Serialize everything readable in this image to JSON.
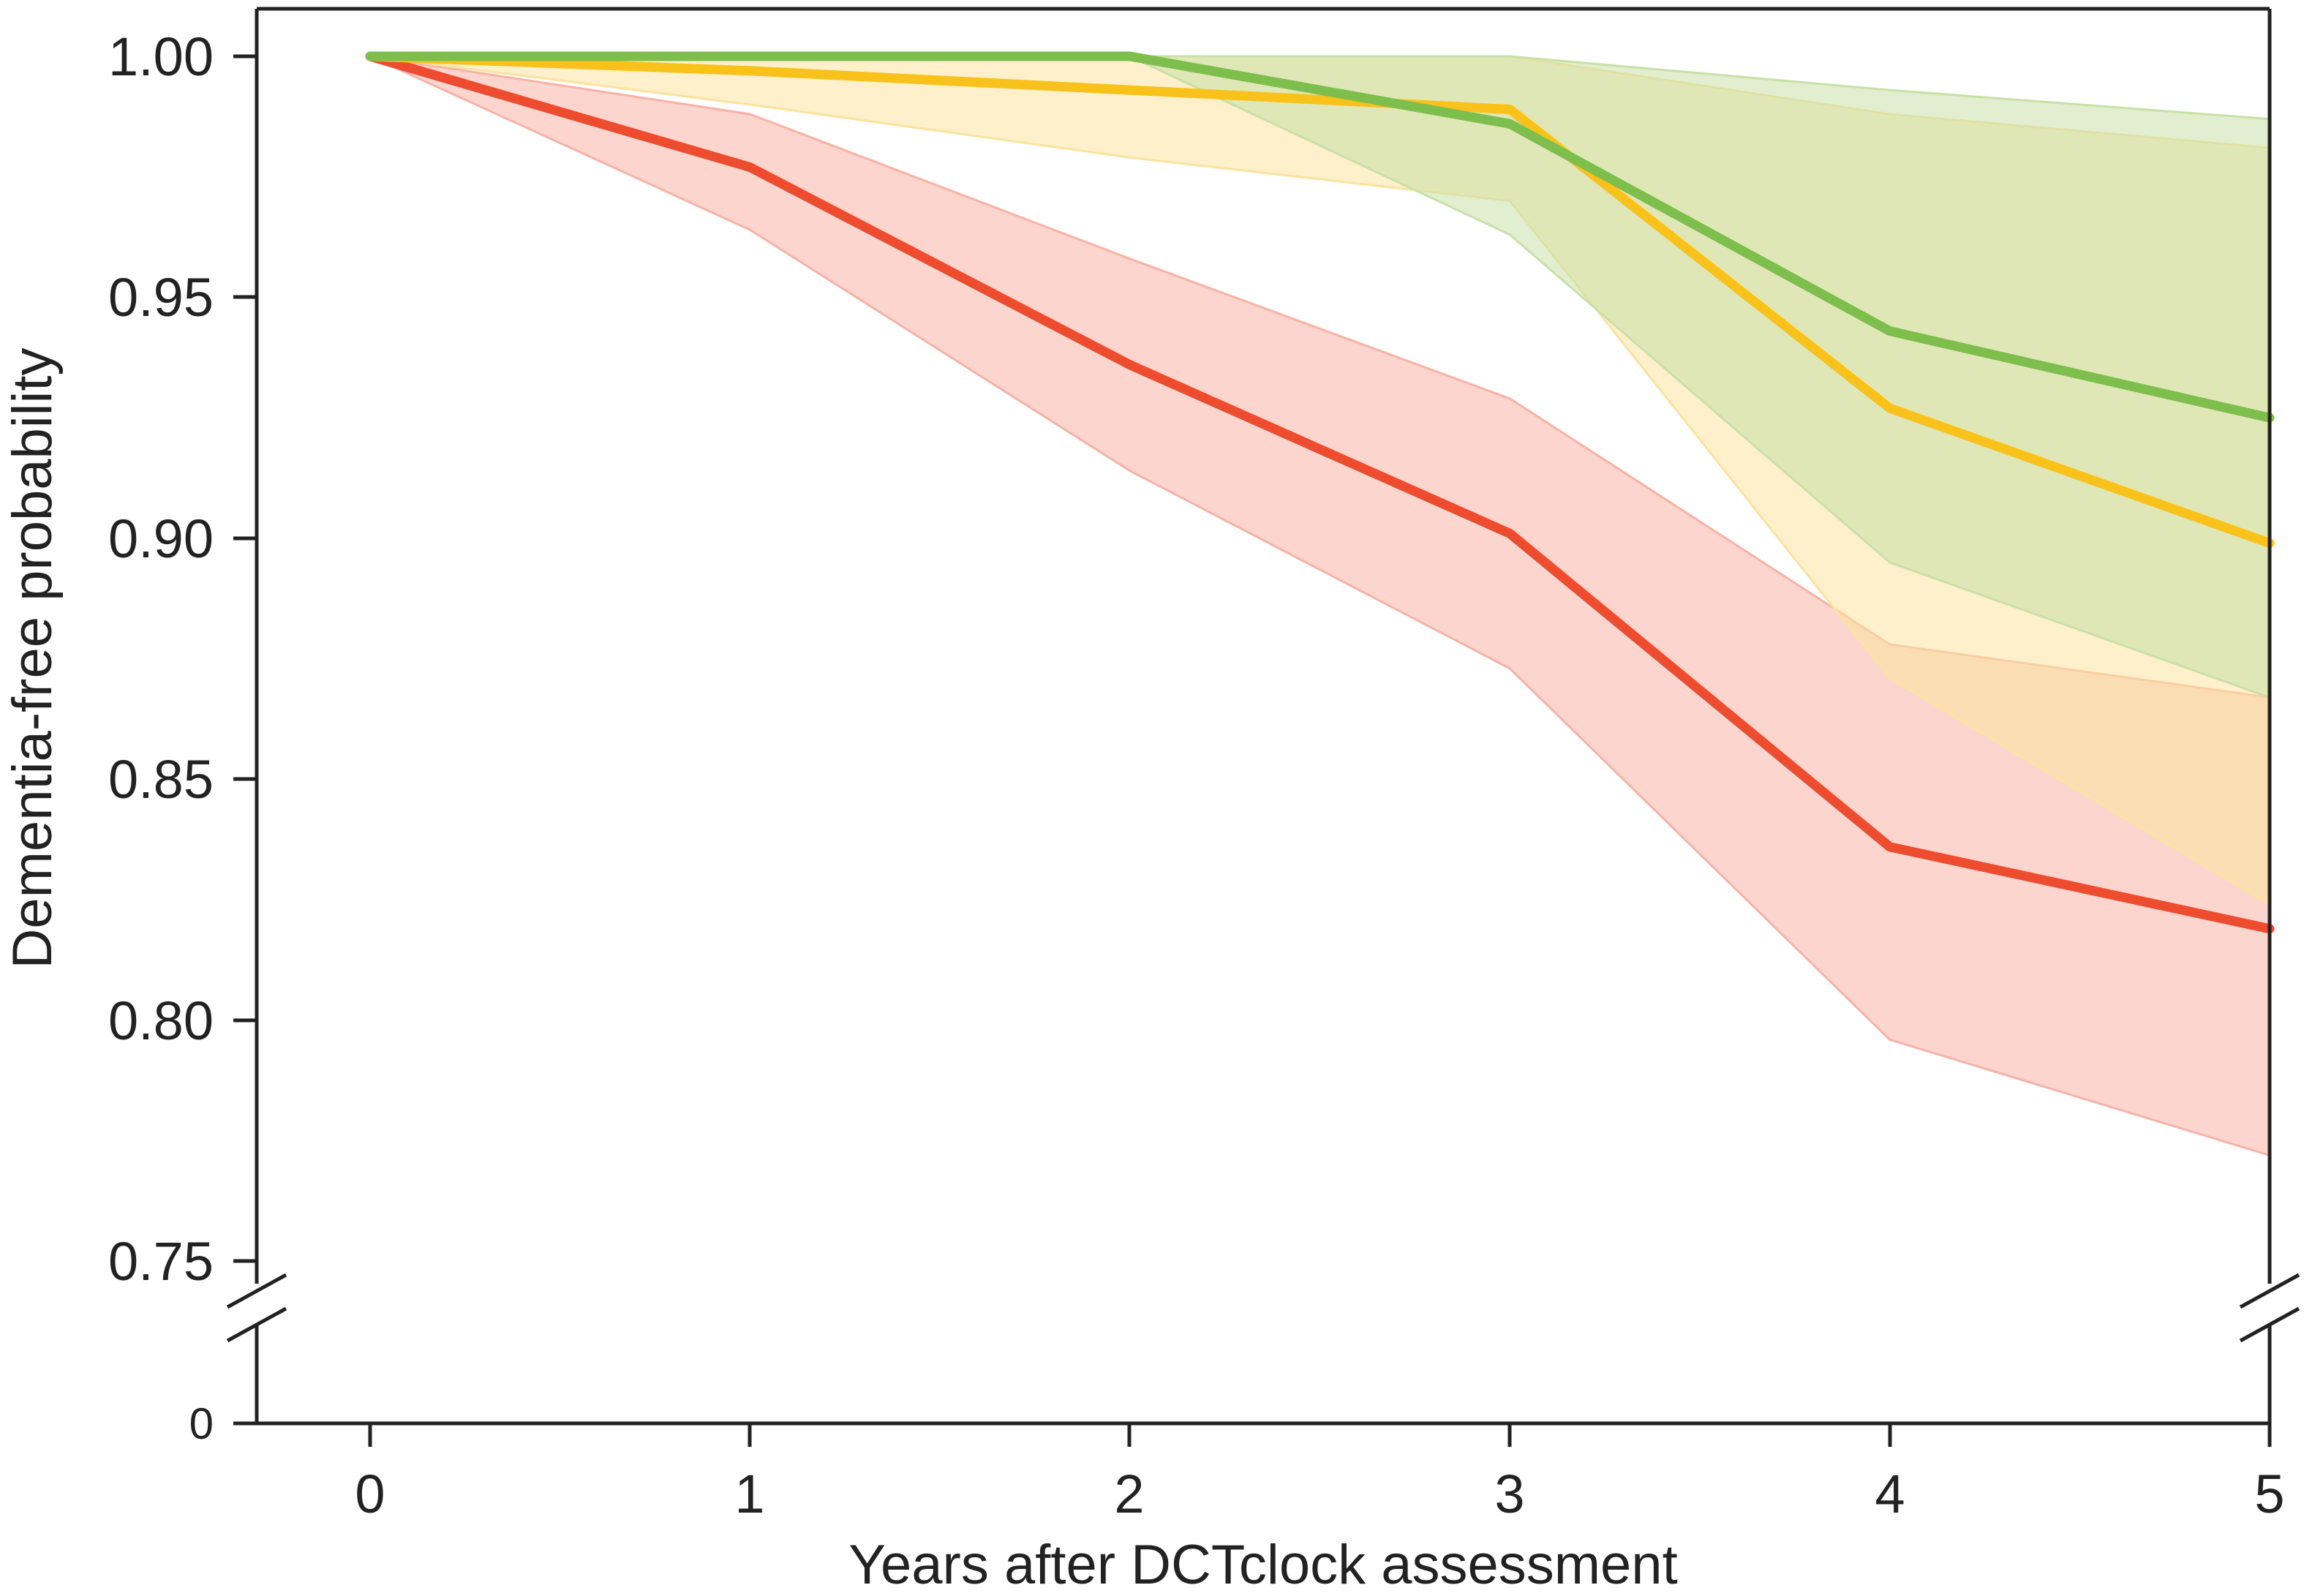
{
  "chart_data": {
    "type": "line",
    "title": "",
    "xlabel": "Years after DCTclock assessment",
    "ylabel": "Dementia-free probability",
    "xlim": [
      -0.3,
      5
    ],
    "ylim": [
      0.75,
      1.0
    ],
    "y_axis_break": true,
    "y_axis_break_floor_label": "0",
    "x_ticks": [
      "0",
      "1",
      "2",
      "3",
      "4",
      "5"
    ],
    "y_ticks": [
      "0.75",
      "0.80",
      "0.85",
      "0.90",
      "0.95",
      "1.00"
    ],
    "x": [
      0,
      1,
      2,
      3,
      4,
      5
    ],
    "series": [
      {
        "name": "red",
        "color": "#ee4c2f",
        "band_color": "#f8b2a6",
        "values": [
          1.0,
          0.977,
          0.936,
          0.901,
          0.836,
          0.819
        ],
        "ci_lower": [
          1.0,
          0.964,
          0.914,
          0.873,
          0.796,
          0.772
        ],
        "ci_upper": [
          1.0,
          0.988,
          0.958,
          0.929,
          0.878,
          0.867
        ]
      },
      {
        "name": "yellow",
        "color": "#f9c21b",
        "band_color": "#fbe39e",
        "values": [
          1.0,
          0.997,
          0.993,
          0.989,
          0.927,
          0.899
        ],
        "ci_lower": [
          1.0,
          0.99,
          0.979,
          0.97,
          0.871,
          0.824
        ],
        "ci_upper": [
          1.0,
          1.0,
          1.0,
          1.0,
          0.988,
          0.981
        ]
      },
      {
        "name": "green",
        "color": "#7dbe4c",
        "band_color": "#c9e0a7",
        "values": [
          1.0,
          1.0,
          1.0,
          0.986,
          0.943,
          0.925
        ],
        "ci_lower": [
          1.0,
          1.0,
          1.0,
          0.963,
          0.895,
          0.867
        ],
        "ci_upper": [
          1.0,
          1.0,
          1.0,
          1.0,
          0.993,
          0.987
        ]
      }
    ]
  }
}
